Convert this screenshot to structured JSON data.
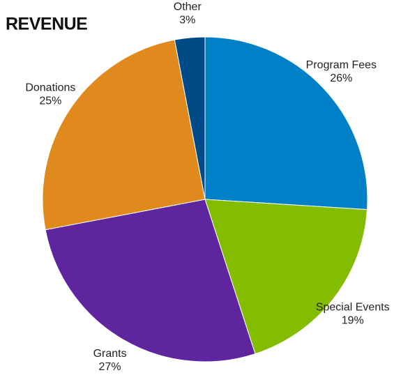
{
  "chart_data": {
    "type": "pie",
    "title": "REVENUE",
    "categories": [
      "Program Fees",
      "Special Events",
      "Grants",
      "Donations",
      "Other"
    ],
    "values": [
      26,
      19,
      27,
      25,
      3
    ],
    "value_labels": [
      "26%",
      "19%",
      "27%",
      "25%",
      "3%"
    ],
    "colors": [
      "#0080c6",
      "#84bd00",
      "#5f259f",
      "#e08a1e",
      "#004b87"
    ]
  }
}
